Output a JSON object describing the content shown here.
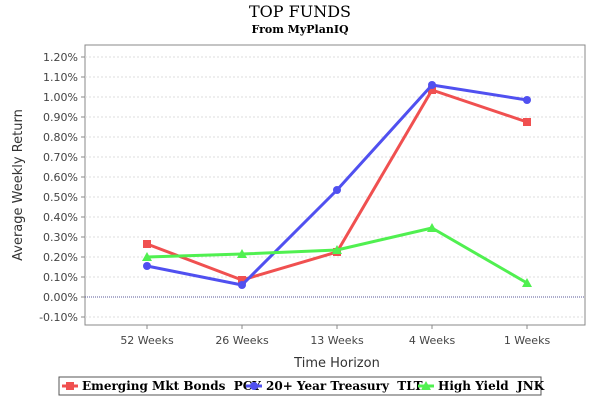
{
  "chart_data": {
    "type": "line",
    "title": "TOP FUNDS",
    "subtitle": "From MyPlanIQ",
    "xlabel": "Time Horizon",
    "ylabel": "Average Weekly Return",
    "categories": [
      "52 Weeks",
      "26 Weeks",
      "13 Weeks",
      "4 Weeks",
      "1 Weeks"
    ],
    "ylim": [
      -0.14,
      1.26
    ],
    "yticks": [
      -0.1,
      0.0,
      0.1,
      0.2,
      0.3,
      0.4,
      0.5,
      0.6,
      0.7,
      0.8,
      0.9,
      1.0,
      1.1,
      1.2
    ],
    "ytick_labels": [
      "-0.10%",
      "0.00%",
      "0.10%",
      "0.20%",
      "0.30%",
      "0.40%",
      "0.50%",
      "0.60%",
      "0.70%",
      "0.80%",
      "0.90%",
      "1.00%",
      "1.10%",
      "1.20%"
    ],
    "grid": true,
    "zero_line": true,
    "legend_position": "bottom",
    "series": [
      {
        "name": "Emerging Mkt Bonds  PCY",
        "color": "#f05050",
        "marker": "square",
        "values": [
          0.265,
          0.085,
          0.225,
          1.035,
          0.875
        ]
      },
      {
        "name": "20+ Year Treasury  TLT",
        "color": "#5050f0",
        "marker": "circle",
        "values": [
          0.155,
          0.06,
          0.535,
          1.06,
          0.985
        ]
      },
      {
        "name": "High Yield  JNK",
        "color": "#50f050",
        "marker": "triangle",
        "values": [
          0.2,
          0.215,
          0.235,
          0.345,
          0.07
        ]
      }
    ]
  }
}
